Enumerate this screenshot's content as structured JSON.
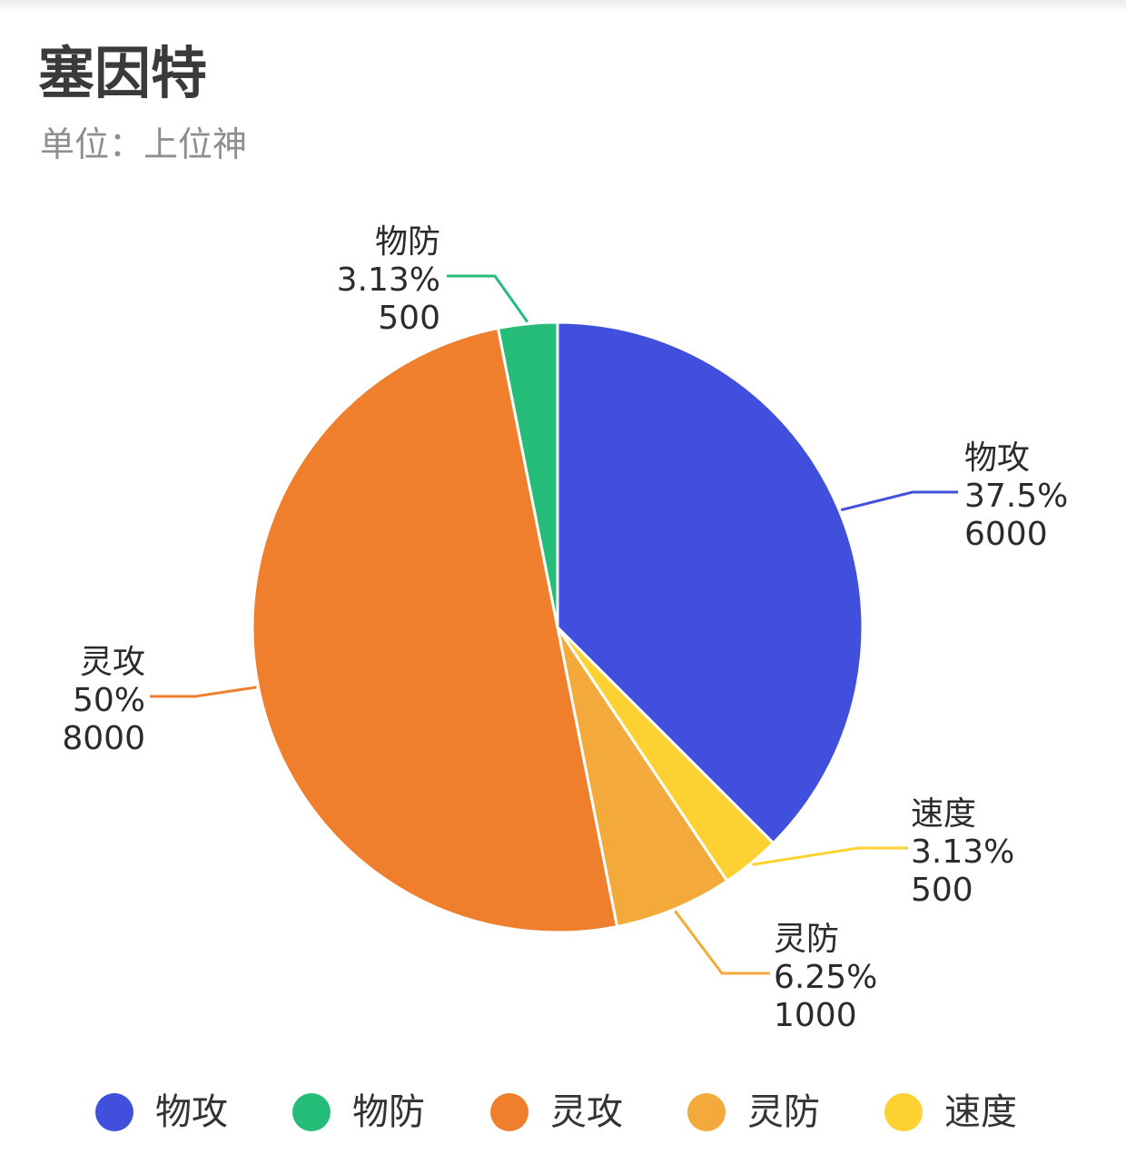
{
  "chart_data": {
    "type": "pie",
    "title": "塞因特",
    "subtitle": "单位：上位神",
    "slices": [
      {
        "name": "物攻",
        "value": 6000,
        "percent": "37.5%",
        "color": "#4150dc"
      },
      {
        "name": "速度",
        "value": 500,
        "percent": "3.13%",
        "color": "#fcd131"
      },
      {
        "name": "灵防",
        "value": 1000,
        "percent": "6.25%",
        "color": "#f4aa3a"
      },
      {
        "name": "灵攻",
        "value": 8000,
        "percent": "50%",
        "color": "#ef7f2c"
      },
      {
        "name": "物防",
        "value": 500,
        "percent": "3.13%",
        "color": "#26bd78"
      }
    ],
    "legend": [
      "物攻",
      "物防",
      "灵攻",
      "灵防",
      "速度"
    ],
    "legend_position": "bottom"
  }
}
